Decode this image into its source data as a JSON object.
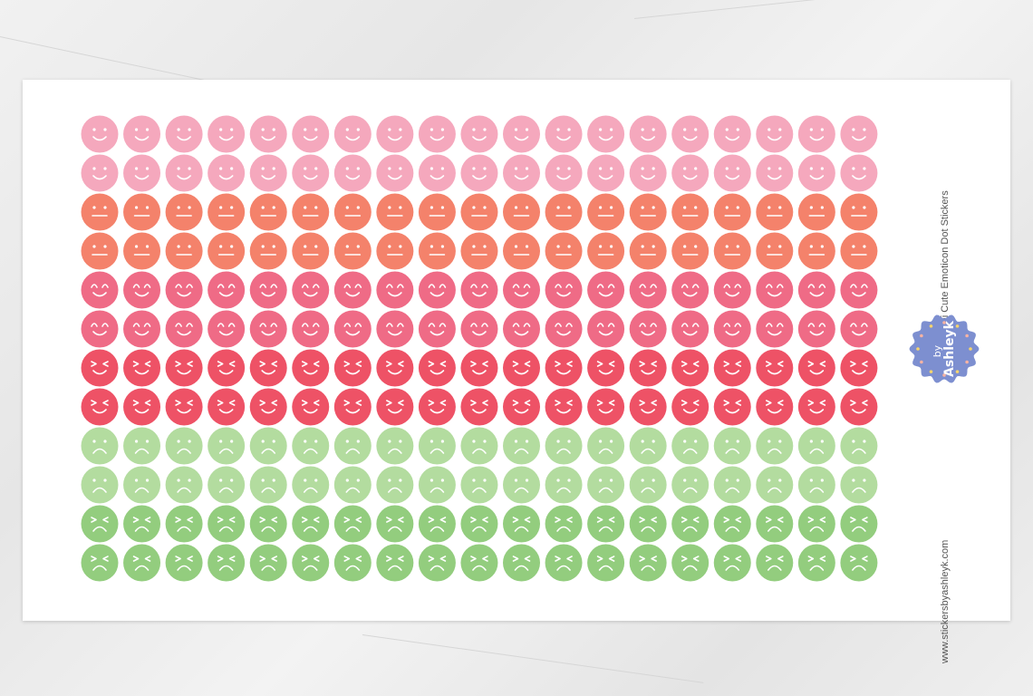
{
  "product_title": "Mini Cute Emoticon Dot Stickers",
  "website": "www.stickersbyashleyk.com",
  "logo": {
    "text": "by Ashleyk",
    "color": "#7d8fd0"
  },
  "columns": 19,
  "rows": [
    {
      "face": "smile",
      "color": "#f5a8bd"
    },
    {
      "face": "smile",
      "color": "#f5a8bd"
    },
    {
      "face": "neutral",
      "color": "#f4826b"
    },
    {
      "face": "neutral",
      "color": "#f4826b"
    },
    {
      "face": "happy-closed-eyes",
      "color": "#ef6b86"
    },
    {
      "face": "happy-closed-eyes",
      "color": "#ef6b86"
    },
    {
      "face": "laughing-squint",
      "color": "#ee5266"
    },
    {
      "face": "laughing-squint",
      "color": "#ee5266"
    },
    {
      "face": "sad",
      "color": "#b3dc9f"
    },
    {
      "face": "sad",
      "color": "#b3dc9f"
    },
    {
      "face": "upset-squint",
      "color": "#93cd7e"
    },
    {
      "face": "upset-squint",
      "color": "#93cd7e"
    }
  ]
}
